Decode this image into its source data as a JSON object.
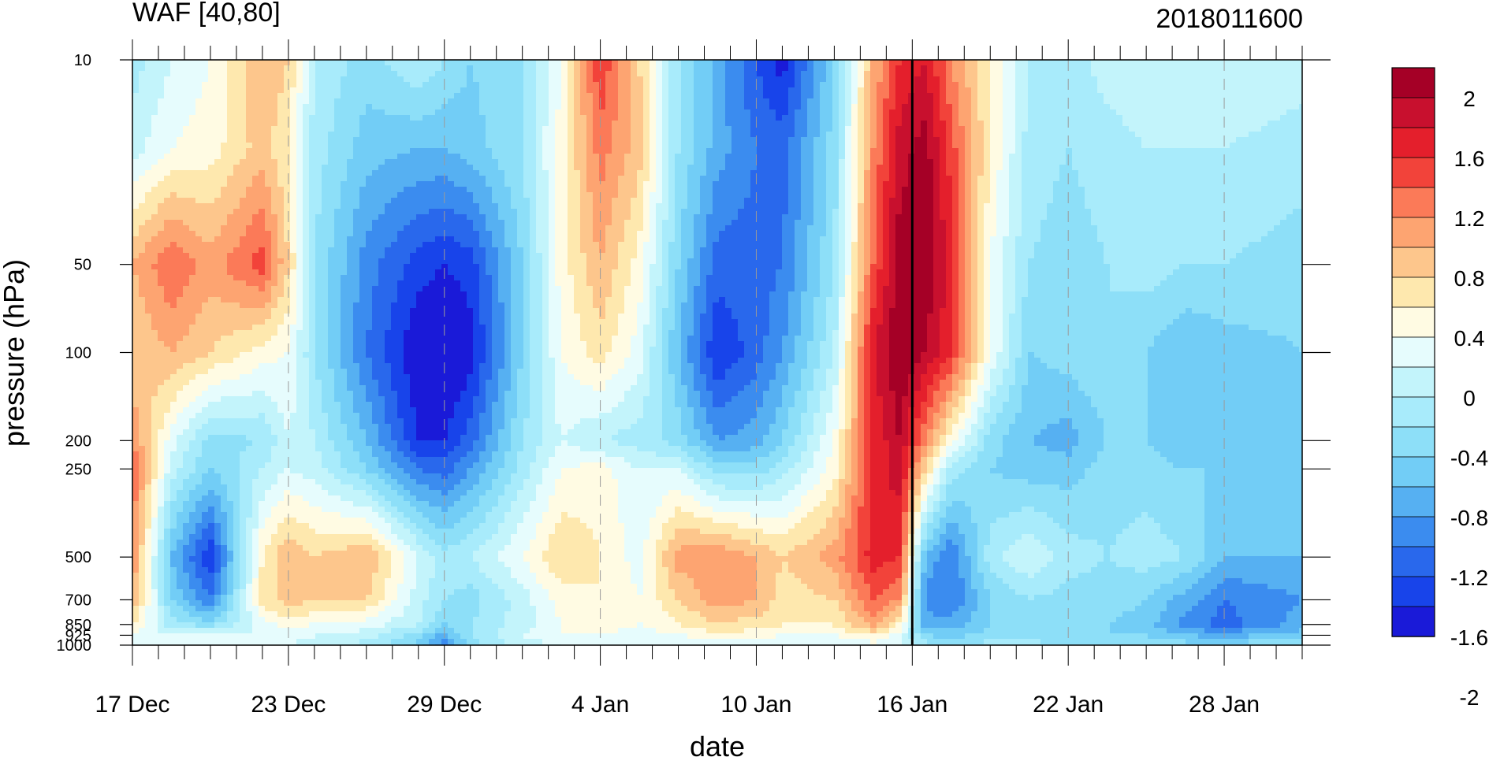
{
  "chart_data": {
    "type": "heatmap",
    "subtype": "filled-contour (time-pressure cross section)",
    "title_left": "WAF [40,80]",
    "title_right": "2018011600",
    "xlabel": "date",
    "ylabel": "pressure (hPa)",
    "x_tick_labels": [
      "17 Dec",
      "23 Dec",
      "29 Dec",
      "4 Jan",
      "10 Jan",
      "16 Jan",
      "22 Jan",
      "28 Jan"
    ],
    "x_ticks_day": [
      0,
      6,
      12,
      18,
      24,
      30,
      36,
      42
    ],
    "x_range_days": [
      0,
      45
    ],
    "y_tick_labels": [
      "10",
      "50",
      "100",
      "200",
      "250",
      "500",
      "700",
      "850",
      "925",
      "1000"
    ],
    "y_levels": [
      10,
      50,
      100,
      200,
      250,
      500,
      700,
      850,
      925,
      1000
    ],
    "y_scale": "log, inverted (10 hPa at top)",
    "vertical_marker_date": "16 Jan",
    "colorbar": {
      "levels": [
        -2,
        -1.8,
        -1.6,
        -1.4,
        -1.2,
        -1,
        -0.8,
        -0.6,
        -0.4,
        -0.2,
        0,
        0.2,
        0.4,
        0.6,
        0.8,
        1,
        1.2,
        1.4,
        1.6,
        1.8,
        2
      ],
      "tick_labels": [
        "2",
        "1.6",
        "1.2",
        "0.8",
        "0.4",
        "0",
        "-0.4",
        "-0.8",
        "-1.2",
        "-1.6",
        "-2"
      ],
      "colors_high_to_low": [
        "#a50026",
        "#c8102e",
        "#e41f2c",
        "#f2433a",
        "#fb7a58",
        "#fda471",
        "#fdc68c",
        "#fee8ae",
        "#fffbe3",
        "#e6fcfd",
        "#c3f4fb",
        "#a8ebfb",
        "#8ddff8",
        "#72cdf6",
        "#56b0f2",
        "#3b8cef",
        "#2968ec",
        "#1844ea",
        "#1a1ad8"
      ]
    },
    "field_rows_pressure": [
      10,
      20,
      50,
      100,
      200,
      250,
      500,
      700,
      850,
      925,
      1000
    ],
    "field_cols_day": [
      0,
      1.5,
      3,
      5,
      6,
      7,
      9,
      11,
      12,
      13,
      15,
      16.5,
      18,
      19.5,
      21,
      22.5,
      24,
      25,
      27,
      28.5,
      29.5,
      30.5,
      31.5,
      33,
      34.5,
      36,
      37.5,
      39,
      40.5,
      42,
      45
    ],
    "field_values": [
      [
        -0.3,
        0,
        0.2,
        0.8,
        0.6,
        -0.2,
        -0.5,
        -0.2,
        -0.4,
        -0.6,
        -0.4,
        0.2,
        1.4,
        0.6,
        -0.4,
        -0.9,
        -1.4,
        -1.7,
        -0.6,
        0.8,
        1.4,
        1.6,
        1.0,
        0.4,
        -0.2,
        -0.3,
        -0.1,
        0,
        -0.1,
        0,
        -0.1
      ],
      [
        -0.1,
        0.2,
        0.3,
        0.7,
        0.4,
        -0.3,
        -0.7,
        -0.8,
        -0.8,
        -0.7,
        -0.4,
        0.3,
        1.1,
        0.7,
        -0.4,
        -0.9,
        -1.2,
        -1.3,
        -0.5,
        1.0,
        1.7,
        1.9,
        1.3,
        0.4,
        -0.3,
        -0.4,
        -0.3,
        -0.2,
        -0.2,
        -0.2,
        -0.3
      ],
      [
        0.8,
        1.2,
        0.9,
        1.3,
        0.6,
        -0.4,
        -1.1,
        -1.5,
        -1.6,
        -1.5,
        -0.6,
        0.3,
        0.8,
        0.3,
        -0.6,
        -1.3,
        -1.3,
        -1.2,
        -0.4,
        1.2,
        1.9,
        2.0,
        1.5,
        0.2,
        -0.4,
        -0.5,
        -0.4,
        -0.3,
        -0.4,
        -0.4,
        -0.5
      ],
      [
        0.6,
        0.8,
        0.6,
        0.3,
        0.2,
        -0.4,
        -1.2,
        -1.8,
        -1.9,
        -1.7,
        -0.6,
        0.2,
        0.5,
        0.1,
        -0.8,
        -1.6,
        -1.3,
        -1.0,
        -0.2,
        1.6,
        2.0,
        1.8,
        1.4,
        0.2,
        -0.6,
        -0.5,
        -0.4,
        -0.6,
        -0.8,
        -0.7,
        -0.6
      ],
      [
        1.0,
        0.1,
        -0.5,
        -0.4,
        0.0,
        -0.2,
        -0.8,
        -1.6,
        -1.6,
        -1.3,
        -0.4,
        0.0,
        -0.2,
        -0.3,
        -0.5,
        -1.0,
        -0.9,
        -0.6,
        0.2,
        1.4,
        1.8,
        1.0,
        0.3,
        -0.5,
        -0.8,
        -0.9,
        -0.6,
        -0.6,
        -0.8,
        -0.8,
        -0.7
      ],
      [
        1.2,
        -0.1,
        -0.6,
        -0.2,
        0.0,
        -0.1,
        -0.6,
        -1.2,
        -1.3,
        -1.0,
        -0.3,
        0.2,
        0.3,
        0.0,
        0.0,
        -0.5,
        -0.5,
        -0.3,
        0.3,
        1.5,
        1.7,
        0.6,
        -0.3,
        -0.6,
        -0.7,
        -0.7,
        -0.5,
        -0.5,
        -0.6,
        -0.6,
        -0.6
      ],
      [
        1.0,
        -0.8,
        -1.6,
        0.4,
        0.8,
        0.6,
        0.8,
        0.0,
        -0.3,
        -0.2,
        0.2,
        0.6,
        0.4,
        0.1,
        0.9,
        1.0,
        0.8,
        0.6,
        0.9,
        1.5,
        1.4,
        -0.8,
        -1.2,
        -0.3,
        0.0,
        -0.3,
        -0.4,
        -0.3,
        -0.4,
        -0.8,
        -0.8
      ],
      [
        0.8,
        -0.6,
        -1.2,
        0.5,
        0.7,
        0.6,
        0.6,
        -0.1,
        -0.4,
        -0.5,
        -0.1,
        0.3,
        0.4,
        0.2,
        0.6,
        0.9,
        0.8,
        0.5,
        0.6,
        1.2,
        1.0,
        -1.1,
        -1.2,
        -0.6,
        -0.4,
        -0.5,
        -0.5,
        -0.6,
        -0.9,
        -1.2,
        -1.0
      ],
      [
        0.4,
        -0.3,
        -0.5,
        0.1,
        0.3,
        0.2,
        0.1,
        -0.2,
        -0.6,
        -0.4,
        -0.1,
        0.2,
        0.3,
        0.2,
        0.4,
        0.6,
        0.5,
        0.4,
        0.4,
        0.9,
        0.4,
        -0.9,
        -0.9,
        -0.6,
        -0.5,
        -0.6,
        -0.6,
        -0.7,
        -1.1,
        -1.3,
        -0.9
      ],
      [
        0.2,
        0.0,
        0.1,
        0.0,
        0.1,
        0.0,
        -0.1,
        -0.5,
        -0.9,
        -0.4,
        0.0,
        0.2,
        0.2,
        0.1,
        0.2,
        0.3,
        0.3,
        0.2,
        0.2,
        0.4,
        0.1,
        -0.6,
        -0.7,
        -0.5,
        -0.5,
        -0.6,
        -0.6,
        -0.6,
        -0.8,
        -0.9,
        -0.7
      ],
      [
        0.1,
        0.0,
        0.0,
        0.0,
        0.0,
        -0.1,
        -0.3,
        -0.7,
        -1.2,
        -0.5,
        -0.1,
        0.0,
        0.0,
        0.0,
        0.0,
        0.1,
        0.1,
        0.0,
        0.0,
        0.1,
        0.0,
        -0.3,
        -0.4,
        -0.3,
        -0.3,
        -0.4,
        -0.4,
        -0.4,
        -0.5,
        -0.5,
        -0.4
      ]
    ]
  }
}
